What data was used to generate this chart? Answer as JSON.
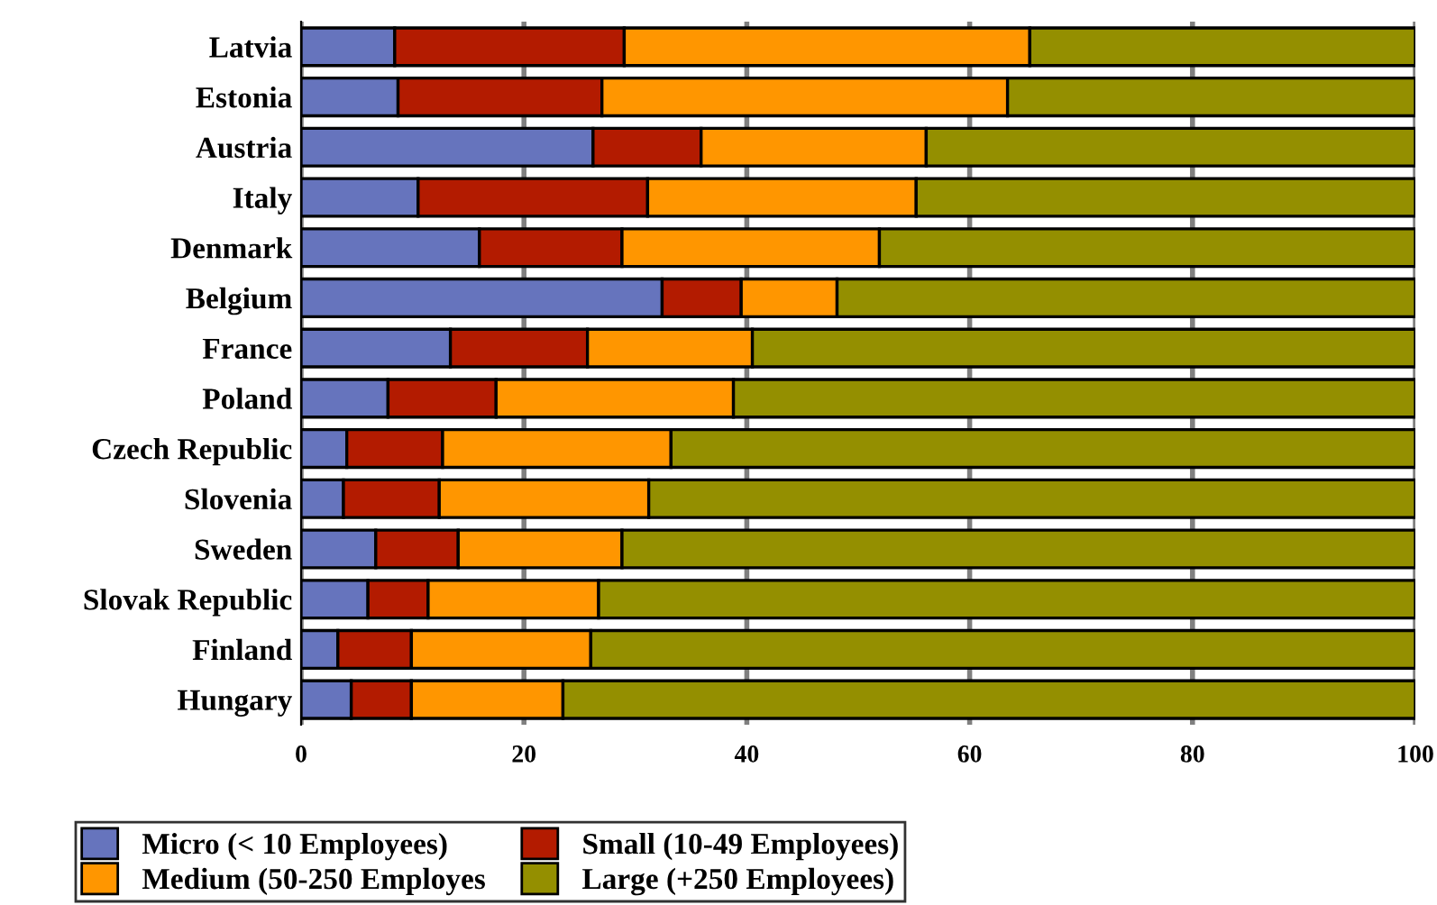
{
  "chart_data": {
    "type": "bar",
    "orientation": "horizontal",
    "stacked": true,
    "categories": [
      "Latvia",
      "Estonia",
      "Austria",
      "Italy",
      "Denmark",
      "Belgium",
      "France",
      "Poland",
      "Czech Republic",
      "Slovenia",
      "Sweden",
      "Slovak Republic",
      "Finland",
      "Hungary"
    ],
    "series": [
      {
        "name": "Micro (< 10 Employees)",
        "color": "#6674bd",
        "values": [
          8.4,
          8.7,
          26.2,
          10.5,
          16.0,
          32.4,
          13.4,
          7.8,
          4.1,
          3.8,
          6.7,
          6.0,
          3.3,
          4.5
        ]
      },
      {
        "name": "Small (10-49 Employees)",
        "color": "#b31b00",
        "values": [
          20.6,
          18.3,
          9.7,
          20.6,
          12.8,
          7.1,
          12.3,
          9.7,
          8.6,
          8.6,
          7.4,
          5.4,
          6.6,
          5.4
        ]
      },
      {
        "name": "Medium (50-250 Employes",
        "color": "#ff9600",
        "values": [
          36.4,
          36.4,
          20.2,
          24.1,
          23.1,
          8.6,
          14.8,
          21.3,
          20.5,
          18.8,
          14.7,
          15.3,
          16.1,
          13.6
        ]
      },
      {
        "name": "Large (+250 Employees)",
        "color": "#948f00",
        "values": [
          34.6,
          36.6,
          43.9,
          44.8,
          48.1,
          51.9,
          59.5,
          61.2,
          66.8,
          68.8,
          71.2,
          73.3,
          74.0,
          76.5
        ]
      }
    ],
    "xlim": [
      0,
      100
    ],
    "xticks": [
      0,
      20,
      40,
      60,
      80,
      100
    ],
    "grid": "x",
    "legend": "bottom"
  }
}
